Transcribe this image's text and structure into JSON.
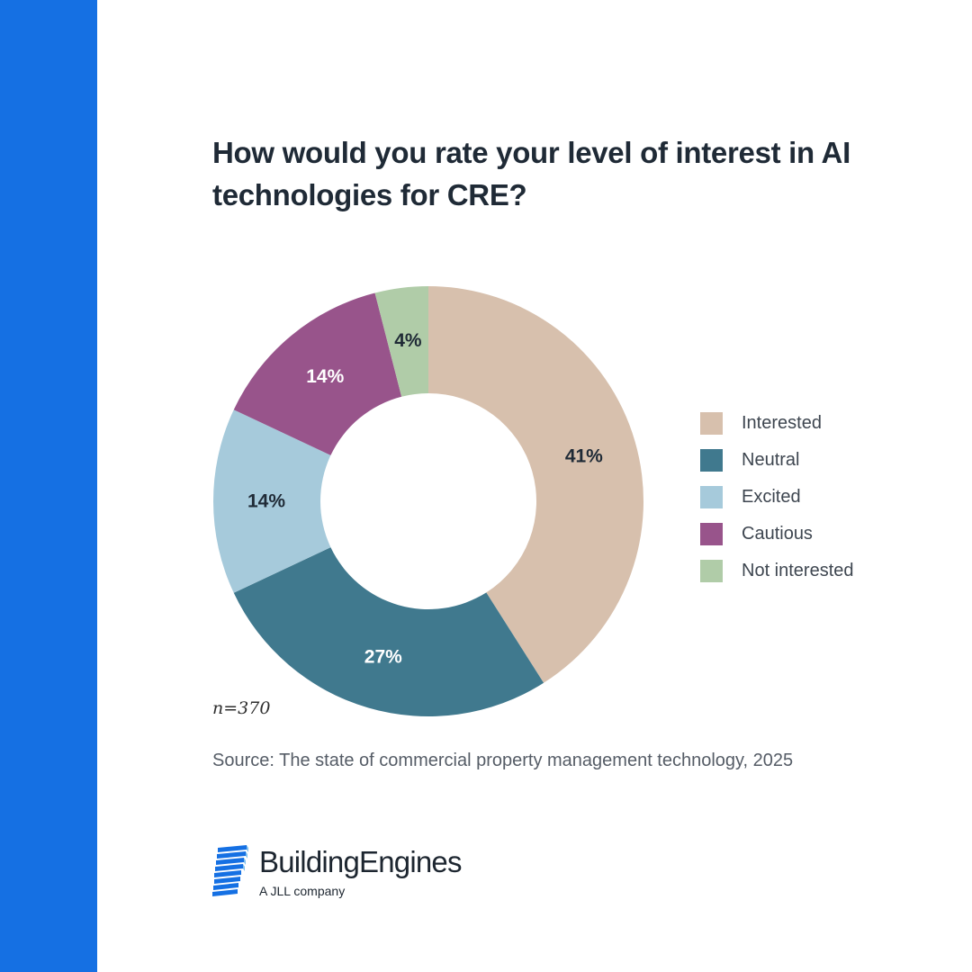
{
  "chart_data": {
    "type": "pie",
    "title": "How would you rate your level of interest in AI technologies for CRE?",
    "slices": [
      {
        "label": "Interested",
        "value": 41,
        "display": "41%",
        "color": "#d7c0ad",
        "text_color": "#1f2a36"
      },
      {
        "label": "Neutral",
        "value": 27,
        "display": "27%",
        "color": "#40798e",
        "text_color": "#ffffff"
      },
      {
        "label": "Excited",
        "value": 14,
        "display": "14%",
        "color": "#a6cadb",
        "text_color": "#1f2a36"
      },
      {
        "label": "Cautious",
        "value": 14,
        "display": "14%",
        "color": "#98548b",
        "text_color": "#ffffff"
      },
      {
        "label": "Not interested",
        "value": 4,
        "display": "4%",
        "color": "#b0cca8",
        "text_color": "#1f2a36"
      }
    ],
    "legend_position": "right"
  },
  "sample_size": "n=370",
  "source": "Source: The state of commercial property management technology, 2025",
  "logo": {
    "name": "BuildingEngines",
    "tagline": "A JLL company",
    "icon": "building-stripes-icon",
    "color": "#1570e3"
  },
  "colors": {
    "side_bar": "#1570e3"
  }
}
